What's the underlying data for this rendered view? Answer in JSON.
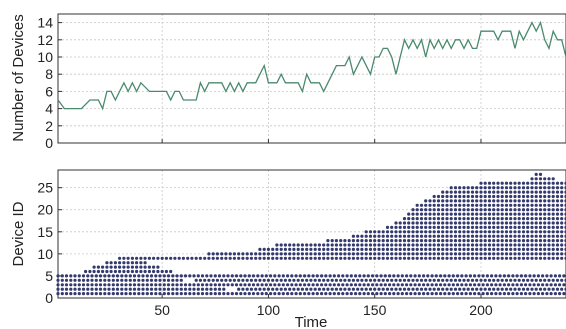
{
  "chart_data": [
    {
      "type": "line",
      "ylabel": "Number of Devices",
      "xlim": [
        1,
        240
      ],
      "ylim": [
        0,
        15
      ],
      "xticks": [
        50,
        100,
        150,
        200
      ],
      "yticks": [
        0,
        2,
        4,
        6,
        8,
        10,
        12,
        14
      ],
      "grid": true,
      "color": "#4a8a6e",
      "x": [
        1,
        4,
        8,
        12,
        16,
        20,
        22,
        24,
        26,
        28,
        30,
        32,
        34,
        36,
        38,
        40,
        44,
        48,
        52,
        54,
        56,
        58,
        60,
        62,
        64,
        66,
        68,
        70,
        72,
        74,
        76,
        78,
        80,
        82,
        84,
        86,
        88,
        90,
        92,
        94,
        96,
        98,
        100,
        102,
        104,
        106,
        108,
        110,
        112,
        114,
        116,
        118,
        120,
        122,
        124,
        126,
        128,
        130,
        132,
        134,
        136,
        138,
        140,
        142,
        144,
        146,
        148,
        150,
        152,
        154,
        156,
        158,
        160,
        162,
        164,
        166,
        168,
        170,
        172,
        174,
        176,
        178,
        180,
        182,
        184,
        186,
        188,
        190,
        192,
        194,
        196,
        198,
        200,
        202,
        204,
        206,
        208,
        210,
        212,
        214,
        216,
        218,
        220,
        222,
        224,
        226,
        228,
        230,
        232,
        234,
        236,
        238,
        240
      ],
      "y": [
        5,
        4,
        4,
        4,
        5,
        5,
        4,
        6,
        6,
        5,
        6,
        7,
        6,
        7,
        6,
        7,
        6,
        6,
        6,
        5,
        6,
        6,
        5,
        5,
        5,
        5,
        7,
        6,
        7,
        7,
        7,
        7,
        6,
        7,
        6,
        7,
        6,
        7,
        7,
        7,
        8,
        9,
        7,
        7,
        7,
        8,
        7,
        7,
        7,
        7,
        6,
        8,
        7,
        7,
        7,
        6,
        7,
        8,
        9,
        9,
        9,
        10,
        8,
        9,
        10,
        9,
        8,
        10,
        10,
        11,
        11,
        10,
        8,
        10,
        12,
        11,
        12,
        11,
        12,
        10,
        12,
        11,
        12,
        11,
        12,
        11,
        12,
        12,
        11,
        12,
        11,
        11,
        13,
        13,
        13,
        13,
        12,
        13,
        13,
        13,
        11,
        13,
        12,
        13,
        14,
        13,
        14,
        12,
        11,
        13,
        12,
        12,
        10
      ]
    },
    {
      "type": "scatter",
      "xlabel": "Time",
      "ylabel": "Device ID",
      "xlim": [
        1,
        240
      ],
      "ylim": [
        0,
        29
      ],
      "xticks": [
        50,
        100,
        150,
        200
      ],
      "yticks": [
        0,
        5,
        10,
        15,
        20,
        25
      ],
      "grid": true,
      "color": "#343a6e",
      "series": [
        {
          "id": 1,
          "segments": [
            [
              1,
              240
            ]
          ]
        },
        {
          "id": 2,
          "segments": [
            [
              1,
              80
            ],
            [
              86,
              240
            ]
          ]
        },
        {
          "id": 3,
          "segments": [
            [
              1,
              240
            ]
          ]
        },
        {
          "id": 4,
          "segments": [
            [
              1,
              60
            ],
            [
              66,
              240
            ]
          ]
        },
        {
          "id": 5,
          "segments": [
            [
              1,
              240
            ]
          ]
        },
        {
          "id": 6,
          "segments": [
            [
              14,
              55
            ]
          ]
        },
        {
          "id": 7,
          "segments": [
            [
              18,
              48
            ]
          ]
        },
        {
          "id": 8,
          "segments": [
            [
              24,
              42
            ]
          ]
        },
        {
          "id": 9,
          "segments": [
            [
              30,
              240
            ]
          ]
        },
        {
          "id": 10,
          "segments": [
            [
              72,
              240
            ]
          ]
        },
        {
          "id": 11,
          "segments": [
            [
              96,
              240
            ]
          ]
        },
        {
          "id": 12,
          "segments": [
            [
              104,
              240
            ]
          ]
        },
        {
          "id": 13,
          "segments": [
            [
              128,
              240
            ]
          ]
        },
        {
          "id": 14,
          "segments": [
            [
              140,
              240
            ]
          ]
        },
        {
          "id": 15,
          "segments": [
            [
              146,
              240
            ]
          ]
        },
        {
          "id": 16,
          "segments": [
            [
              156,
              240
            ]
          ]
        },
        {
          "id": 17,
          "segments": [
            [
              160,
              240
            ]
          ]
        },
        {
          "id": 18,
          "segments": [
            [
              164,
              240
            ]
          ]
        },
        {
          "id": 19,
          "segments": [
            [
              166,
              240
            ]
          ]
        },
        {
          "id": 20,
          "segments": [
            [
              168,
              240
            ]
          ]
        },
        {
          "id": 21,
          "segments": [
            [
              170,
              240
            ]
          ]
        },
        {
          "id": 22,
          "segments": [
            [
              174,
              240
            ]
          ]
        },
        {
          "id": 23,
          "segments": [
            [
              178,
              240
            ]
          ]
        },
        {
          "id": 24,
          "segments": [
            [
              182,
              240
            ]
          ]
        },
        {
          "id": 25,
          "segments": [
            [
              186,
              240
            ]
          ]
        },
        {
          "id": 26,
          "segments": [
            [
              200,
              240
            ]
          ]
        },
        {
          "id": 27,
          "segments": [
            [
              224,
              234
            ]
          ]
        },
        {
          "id": 28,
          "segments": [
            [
              226,
              228
            ]
          ]
        }
      ]
    }
  ]
}
